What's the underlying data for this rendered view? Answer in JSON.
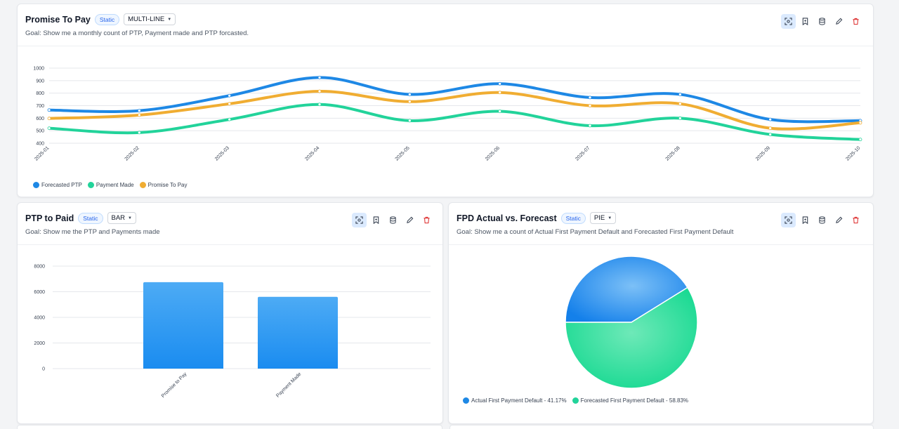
{
  "colors": {
    "blue": "#1e88e5",
    "green": "#22d39a",
    "orange": "#f0ad32",
    "danger": "#dc2626"
  },
  "cards": {
    "ptp": {
      "title": "Promise To Pay",
      "badge": "Static",
      "chart_type_label": "MULTI-LINE",
      "goal": "Goal: Show me a monthly count of PTP, Payment made and PTP forcasted."
    },
    "paid": {
      "title": "PTP to Paid",
      "badge": "Static",
      "chart_type_label": "BAR",
      "goal": "Goal: Show me the PTP and Payments made"
    },
    "fpd": {
      "title": "FPD Actual vs. Forecast",
      "badge": "Static",
      "chart_type_label": "PIE",
      "goal": "Goal: Show me a count of Actual First Payment Default and Forecasted First Payment Default"
    }
  },
  "toolbar_icons": [
    "focus-icon",
    "bookmark-icon",
    "database-icon",
    "pencil-icon",
    "trash-icon"
  ],
  "chart_data": [
    {
      "type": "line",
      "x": [
        "2025-01",
        "2025-02",
        "2025-03",
        "2025-04",
        "2025-05",
        "2025-06",
        "2025-07",
        "2025-08",
        "2025-09",
        "2025-10"
      ],
      "ylim": [
        400,
        1000
      ],
      "yticks": [
        "400",
        "500",
        "600",
        "700",
        "800",
        "900",
        "1000"
      ],
      "grid": true,
      "legend": "bottom-left",
      "series": [
        {
          "name": "Forecasted PTP",
          "color": "#1e88e5",
          "values": [
            665,
            660,
            780,
            925,
            790,
            875,
            765,
            790,
            590,
            580
          ]
        },
        {
          "name": "Payment Made",
          "color": "#22d39a",
          "values": [
            520,
            485,
            590,
            710,
            580,
            655,
            540,
            600,
            470,
            430
          ]
        },
        {
          "name": "Promise To Pay",
          "color": "#f0ad32",
          "values": [
            598,
            625,
            715,
            815,
            732,
            805,
            700,
            715,
            520,
            563
          ]
        }
      ]
    },
    {
      "type": "bar",
      "categories": [
        "Promise to Pay",
        "Payment Made"
      ],
      "values": [
        6750,
        5600
      ],
      "ylim": [
        0,
        8000
      ],
      "yticks": [
        "0",
        "2000",
        "4000",
        "6000",
        "8000"
      ],
      "grid": true
    },
    {
      "type": "pie",
      "labels": [
        "Actual First Payment Default - 41.17%",
        "Forecasted First Payment Default - 58.83%"
      ],
      "values": [
        41.17,
        58.83
      ],
      "colors": [
        "#1e88e5",
        "#22d39a"
      ],
      "legend": "bottom-left"
    }
  ]
}
